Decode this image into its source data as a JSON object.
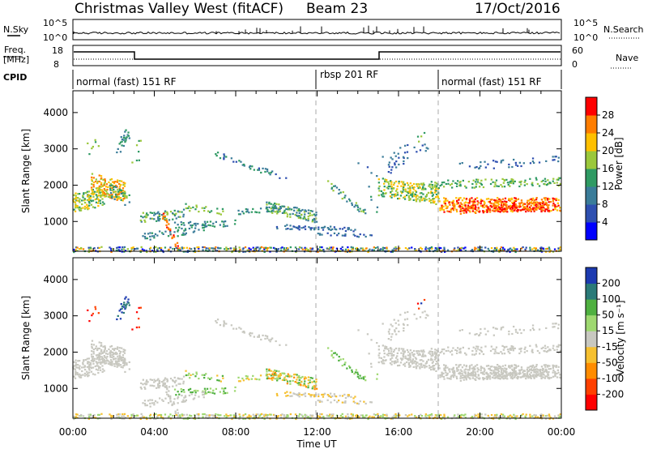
{
  "header": {
    "station": "Christmas Valley West (fitACF)",
    "beam": "Beam 23",
    "date": "17/Oct/2016"
  },
  "top_panels": {
    "nsky_label": "N.Sky",
    "nsearch_label": "N.Search",
    "nsky_ticks": [
      "10^5",
      "10^0"
    ],
    "nsearch_ticks": [
      "10^5",
      "10^0"
    ],
    "freq_label_1": "Freq.",
    "freq_label_2": "[MHz]",
    "freq_ticks": [
      "18",
      "8"
    ],
    "nave_label": "Nave",
    "nave_ticks": [
      "60",
      "0"
    ],
    "cpid_label": "CPID",
    "modes": [
      {
        "label": "normal (fast) 151 RF",
        "start_hour": 0
      },
      {
        "label": "rbsp 201 RF",
        "start_hour": 12
      },
      {
        "label": "normal (fast) 151 RF",
        "start_hour": 18
      }
    ]
  },
  "chart_data": [
    {
      "type": "heatmap",
      "quantity": "power",
      "ylabel": "Slant Range [km]",
      "ylim": [
        180,
        4600
      ],
      "xlim_hours": [
        0,
        24
      ],
      "y_ticks": [
        "4000",
        "3000",
        "2000",
        "1000"
      ],
      "colorbar_label": "Power [dB]",
      "colorbar_ticks": [
        "28",
        "24",
        "20",
        "16",
        "12",
        "8",
        "4"
      ],
      "colors": [
        "#0000ff",
        "#2e4fb0",
        "#3a7c99",
        "#2f9a63",
        "#9bc83b",
        "#ffc000",
        "#ff7d00",
        "#ff0000"
      ]
    },
    {
      "type": "heatmap",
      "quantity": "velocity",
      "ylabel": "Slant Range [km]",
      "ylim": [
        180,
        4600
      ],
      "xlim_hours": [
        0,
        24
      ],
      "y_ticks": [
        "4000",
        "3000",
        "2000",
        "1000"
      ],
      "colorbar_label": "Velocity [m s⁻¹]",
      "colorbar_ticks": [
        "200",
        "100",
        "50",
        "15",
        "-15",
        "-50",
        "-100",
        "-200"
      ],
      "colors": [
        "#1c3ab0",
        "#2a7a78",
        "#4fb040",
        "#9ed870",
        "#c8c8c0",
        "#f6c030",
        "#ff8c00",
        "#ff4000",
        "#ff0000"
      ]
    }
  ],
  "x_axis": {
    "label": "Time UT",
    "ticks": [
      "00:00",
      "04:00",
      "08:00",
      "12:00",
      "16:00",
      "20:00",
      "00:00"
    ]
  }
}
